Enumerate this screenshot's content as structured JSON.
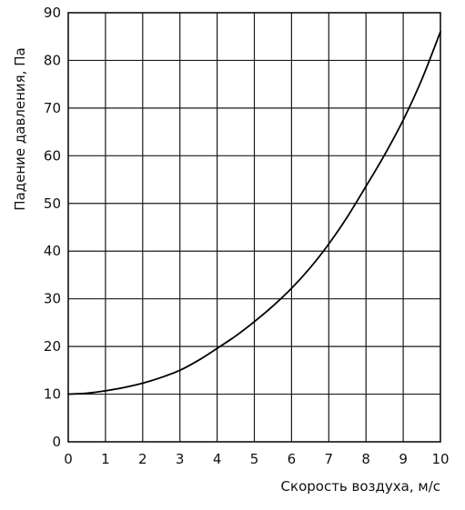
{
  "chart_data": {
    "type": "line",
    "xlabel": "Скорость воздуха, м/с",
    "ylabel": "Падение давления, Па",
    "xlim": [
      0,
      10
    ],
    "ylim": [
      0,
      90
    ],
    "x_ticks": [
      "0",
      "1",
      "2",
      "3",
      "4",
      "5",
      "6",
      "7",
      "8",
      "9",
      "10"
    ],
    "y_ticks": [
      "0",
      "10",
      "20",
      "30",
      "40",
      "50",
      "60",
      "70",
      "80",
      "90"
    ],
    "grid": true,
    "series": [
      {
        "x": [
          0,
          0.5,
          1,
          1.5,
          2,
          2.5,
          3,
          3.5,
          4,
          4.5,
          5,
          5.5,
          6,
          6.5,
          7,
          7.5,
          8,
          8.5,
          9,
          9.5,
          10
        ],
        "y": [
          10,
          10.2,
          10.7,
          11.4,
          12.3,
          13.5,
          15,
          17.1,
          19.6,
          22.2,
          25.2,
          28.5,
          32.2,
          36.5,
          41.5,
          47.2,
          53.6,
          60.2,
          67.5,
          76.0,
          86.0
        ]
      }
    ],
    "colors": {
      "line": "#000000",
      "grid": "#1a1a1a",
      "background": "#ffffff"
    }
  }
}
